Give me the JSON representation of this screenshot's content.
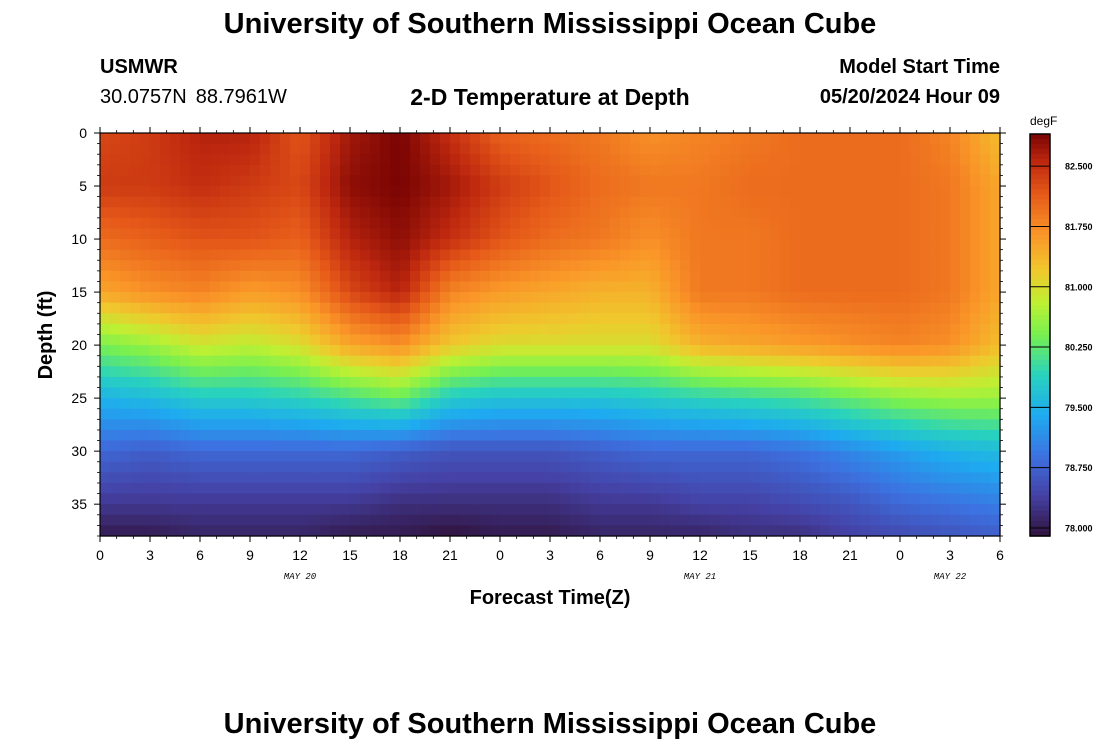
{
  "header": {
    "title": "University of Southern Mississippi Ocean Cube",
    "station": "USMWR",
    "latitude": "30.0757N",
    "longitude": "88.7961W",
    "subtitle": "2-D Temperature at Depth",
    "model_start_label": "Model Start Time",
    "model_start_value": "05/20/2024 Hour 09"
  },
  "footer": {
    "title": "University of Southern Mississippi Ocean Cube"
  },
  "chart_data": {
    "type": "heatmap",
    "title": "2-D Temperature at Depth",
    "xlabel": "Forecast Time(Z)",
    "ylabel": "Depth (ft)",
    "x_unit": "hours from 2024-05-20 00Z",
    "xlim": [
      0,
      54
    ],
    "ylim": [
      0,
      38
    ],
    "y_inverted": true,
    "x_tick_values": [
      0,
      3,
      6,
      9,
      12,
      15,
      18,
      21,
      24,
      27,
      30,
      33,
      36,
      39,
      42,
      45,
      48,
      51,
      54
    ],
    "x_tick_labels": [
      "0",
      "3",
      "6",
      "9",
      "12",
      "15",
      "18",
      "21",
      "0",
      "3",
      "6",
      "9",
      "12",
      "15",
      "18",
      "21",
      "0",
      "3",
      "6"
    ],
    "y_tick_values": [
      0,
      5,
      10,
      15,
      20,
      25,
      30,
      35
    ],
    "y_tick_labels": [
      "0",
      "5",
      "10",
      "15",
      "20",
      "25",
      "30",
      "35"
    ],
    "date_labels": [
      {
        "x": 12,
        "text": "MAY 20"
      },
      {
        "x": 36,
        "text": "MAY 21"
      },
      {
        "x": 51,
        "text": "MAY 22"
      }
    ],
    "colorbar": {
      "units": "degF",
      "vmin": 77.9,
      "vmax": 82.9,
      "tick_values": [
        78.0,
        78.75,
        79.5,
        80.25,
        81.0,
        81.75,
        82.5
      ],
      "tick_labels": [
        "78.000",
        "78.750",
        "79.500",
        "80.250",
        "81.000",
        "81.750",
        "82.500"
      ]
    },
    "grid": {
      "times": [
        0,
        3,
        6,
        9,
        12,
        15,
        18,
        21,
        24,
        27,
        30,
        33,
        36,
        39,
        42,
        45,
        48,
        51,
        54
      ],
      "depths": [
        0,
        5,
        10,
        15,
        20,
        25,
        30,
        35,
        38
      ],
      "temperature_degF": [
        [
          82.3,
          82.4,
          82.6,
          82.6,
          82.2,
          82.7,
          82.9,
          82.5,
          82.1,
          82.0,
          81.9,
          81.7,
          81.8,
          81.9,
          82.0,
          82.0,
          82.0,
          81.8,
          81.3
        ],
        [
          82.4,
          82.4,
          82.5,
          82.4,
          82.3,
          82.8,
          82.9,
          82.7,
          82.4,
          82.2,
          82.0,
          81.9,
          81.9,
          82.0,
          82.0,
          82.0,
          82.0,
          81.9,
          81.5
        ],
        [
          82.0,
          82.1,
          82.2,
          82.2,
          82.1,
          82.6,
          82.8,
          82.5,
          82.2,
          82.0,
          81.9,
          81.7,
          81.9,
          81.9,
          82.0,
          82.0,
          82.0,
          81.9,
          81.5
        ],
        [
          81.5,
          81.7,
          81.8,
          81.6,
          81.7,
          82.3,
          82.6,
          81.8,
          81.6,
          81.5,
          81.4,
          81.4,
          81.9,
          81.9,
          82.0,
          82.0,
          82.0,
          81.9,
          81.5
        ],
        [
          80.4,
          80.6,
          80.9,
          80.8,
          81.0,
          81.5,
          81.7,
          81.2,
          81.0,
          81.0,
          81.0,
          81.0,
          81.4,
          81.5,
          81.6,
          81.7,
          81.8,
          81.7,
          81.3
        ],
        [
          79.5,
          79.6,
          79.8,
          79.8,
          79.9,
          80.1,
          80.3,
          79.8,
          79.7,
          79.7,
          79.7,
          79.8,
          79.9,
          80.0,
          80.1,
          80.3,
          80.5,
          80.6,
          80.6
        ],
        [
          78.8,
          78.7,
          78.8,
          78.8,
          78.8,
          78.8,
          78.7,
          78.6,
          78.6,
          78.6,
          78.7,
          78.8,
          78.8,
          78.8,
          78.9,
          79.1,
          79.3,
          79.5,
          79.6
        ],
        [
          78.3,
          78.3,
          78.3,
          78.3,
          78.3,
          78.3,
          78.2,
          78.2,
          78.2,
          78.2,
          78.3,
          78.3,
          78.4,
          78.4,
          78.5,
          78.6,
          78.8,
          78.9,
          79.0
        ],
        [
          78.0,
          78.0,
          78.1,
          78.1,
          78.1,
          78.0,
          78.0,
          77.9,
          78.0,
          78.0,
          78.1,
          78.1,
          78.1,
          78.2,
          78.2,
          78.4,
          78.5,
          78.6,
          78.7
        ]
      ]
    }
  }
}
